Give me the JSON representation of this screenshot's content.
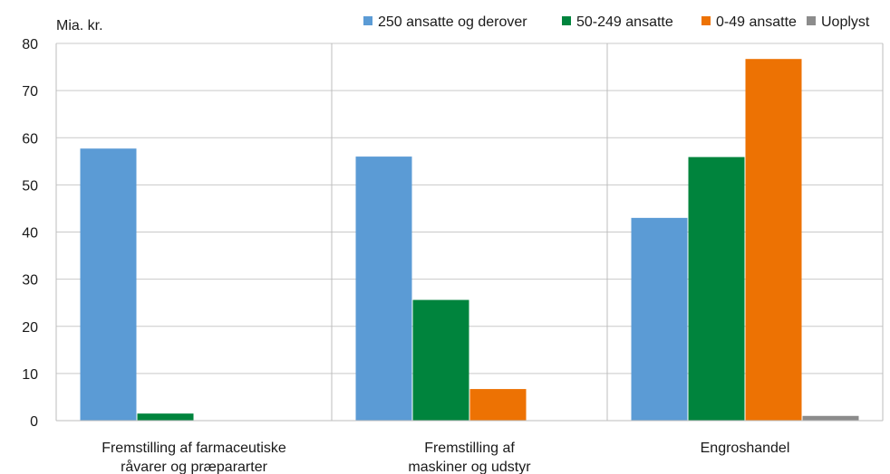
{
  "chart_data": {
    "type": "bar",
    "ylabel": "Mia. kr.",
    "ylim": [
      0,
      80
    ],
    "yticks": [
      0,
      10,
      20,
      30,
      40,
      50,
      60,
      70,
      80
    ],
    "grid": true,
    "legend_position": "top",
    "categories": [
      [
        "Fremstilling af farmaceutiske",
        "råvarer og præpararter"
      ],
      [
        "Fremstilling af",
        "maskiner og udstyr"
      ],
      [
        "Engroshandel"
      ]
    ],
    "series": [
      {
        "name": "250 ansatte og derover",
        "color": "#5b9bd5",
        "values": [
          57.7,
          56.0,
          43.0
        ]
      },
      {
        "name": "50-249 ansatte",
        "color": "#00843d",
        "values": [
          1.5,
          25.6,
          55.9
        ]
      },
      {
        "name": "0-49 ansatte",
        "color": "#ed7203",
        "values": [
          0,
          6.7,
          76.7
        ]
      },
      {
        "name": "Uoplyst",
        "color": "#8c8c8c",
        "values": [
          0,
          0,
          1.0
        ]
      }
    ]
  }
}
